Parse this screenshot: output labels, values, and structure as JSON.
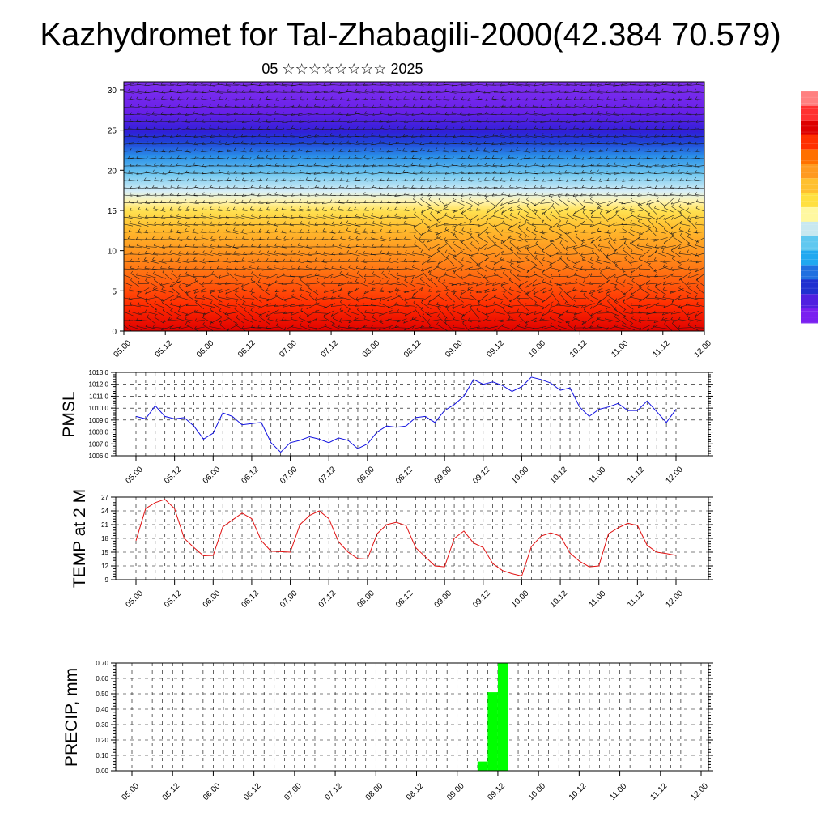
{
  "title": "Kazhydromet for Tal-Zhabagili-2000(42.384 70.579)",
  "subtitle": "05 ☆☆☆☆☆☆☆☆ 2025",
  "colors": {
    "pmsl": "#1010e0",
    "temp": "#e01010",
    "precip": "#00ff00",
    "colorbar": [
      "#ff8080",
      "#ff3030",
      "#dd0000",
      "#ff3000",
      "#ff7000",
      "#ff9a20",
      "#ffc030",
      "#ffe040",
      "#fff8a0",
      "#c8e8f0",
      "#60c8f0",
      "#20a8f0",
      "#2070e0",
      "#2030d0",
      "#5020e0",
      "#7a20f0"
    ]
  },
  "chart_data": [
    {
      "type": "heatmap",
      "title": "",
      "xlabel": "",
      "ylabel": "",
      "x_ticks": [
        "05.00",
        "05.12",
        "06.00",
        "06.12",
        "07.00",
        "07.12",
        "08.00",
        "08.12",
        "09.00",
        "09.12",
        "10.00",
        "10.12",
        "11.00",
        "11.12",
        "12.00"
      ],
      "y_ticks": [
        "0",
        "5",
        "10",
        "15",
        "20",
        "25",
        "30"
      ],
      "ylim": [
        0,
        31
      ],
      "description_bands": [
        {
          "from": 0,
          "to": 6,
          "color": "red"
        },
        {
          "from": 6,
          "to": 12,
          "color": "orange"
        },
        {
          "from": 12,
          "to": 16,
          "color": "yellow"
        },
        {
          "from": 16,
          "to": 24,
          "color": "light-blue to blue"
        },
        {
          "from": 24,
          "to": 31,
          "color": "purple"
        }
      ]
    },
    {
      "type": "line",
      "ylabel": "PMSL",
      "ylim": [
        1006.0,
        1013.0
      ],
      "y_ticks": [
        "1006.0",
        "1007.0",
        "1008.0",
        "1009.0",
        "1010.0",
        "1011.0",
        "1012.0",
        "1013.0"
      ],
      "x_ticks": [
        "05.00",
        "05.12",
        "06.00",
        "06.12",
        "07.00",
        "07.12",
        "08.00",
        "08.12",
        "09.00",
        "09.12",
        "10.00",
        "10.12",
        "11.00",
        "11.12",
        "12.00"
      ],
      "grid": true,
      "values": [
        1009.3,
        1009.1,
        1010.2,
        1009.3,
        1009.1,
        1009.2,
        1008.5,
        1007.4,
        1007.9,
        1009.6,
        1009.3,
        1008.6,
        1008.7,
        1008.8,
        1007.1,
        1006.3,
        1007.1,
        1007.3,
        1007.6,
        1007.4,
        1007.1,
        1007.5,
        1007.3,
        1006.6,
        1007.0,
        1008.0,
        1008.5,
        1008.4,
        1008.5,
        1009.2,
        1009.3,
        1008.8,
        1009.8,
        1010.3,
        1011.0,
        1012.4,
        1012.0,
        1012.2,
        1011.9,
        1011.4,
        1011.8,
        1012.6,
        1012.4,
        1012.1,
        1011.5,
        1011.7,
        1010.1,
        1009.3,
        1009.9,
        1010.1,
        1010.4,
        1009.8,
        1009.8,
        1010.6,
        1009.7,
        1008.8,
        1009.9
      ]
    },
    {
      "type": "line",
      "ylabel": "TEMP at 2 M",
      "ylim": [
        9,
        27
      ],
      "y_ticks": [
        "9",
        "12",
        "15",
        "18",
        "21",
        "24",
        "27"
      ],
      "x_ticks": [
        "05.00",
        "05.12",
        "06.00",
        "06.12",
        "07.00",
        "07.12",
        "08.00",
        "08.12",
        "09.00",
        "09.12",
        "10.00",
        "10.12",
        "11.00",
        "11.12",
        "12.00"
      ],
      "grid": true,
      "values": [
        17.5,
        24.5,
        25.8,
        26.5,
        24.5,
        18.0,
        16.0,
        14.2,
        14.3,
        20.5,
        22.0,
        23.5,
        22.3,
        17.5,
        15.2,
        15.1,
        15.0,
        21.0,
        23.0,
        24.0,
        22.3,
        17.3,
        15.0,
        13.6,
        13.5,
        19.0,
        21.0,
        21.5,
        20.8,
        16.0,
        14.0,
        12.0,
        11.8,
        18.0,
        19.6,
        17.0,
        16.0,
        12.5,
        11.0,
        10.3,
        9.8,
        16.2,
        18.5,
        19.2,
        18.5,
        14.8,
        13.0,
        11.8,
        12.0,
        19.0,
        20.3,
        21.3,
        20.8,
        16.5,
        15.0,
        14.7,
        14.3
      ]
    },
    {
      "type": "bar",
      "ylabel": "PRECIP, mm",
      "ylim": [
        0,
        0.7
      ],
      "y_ticks": [
        "0.00",
        "0.10",
        "0.20",
        "0.30",
        "0.40",
        "0.50",
        "0.60",
        "0.70"
      ],
      "x_ticks": [
        "05.00",
        "05.12",
        "06.00",
        "06.12",
        "07.00",
        "07.12",
        "08.00",
        "08.12",
        "09.00",
        "09.12",
        "10.00",
        "10.12",
        "11.00",
        "11.12",
        "12.00"
      ],
      "grid": true,
      "bars": [
        {
          "x_step": 34.5,
          "value": 0.06
        },
        {
          "x_step": 35.5,
          "value": 0.51
        },
        {
          "x_step": 36.5,
          "value": 0.7
        }
      ]
    }
  ]
}
